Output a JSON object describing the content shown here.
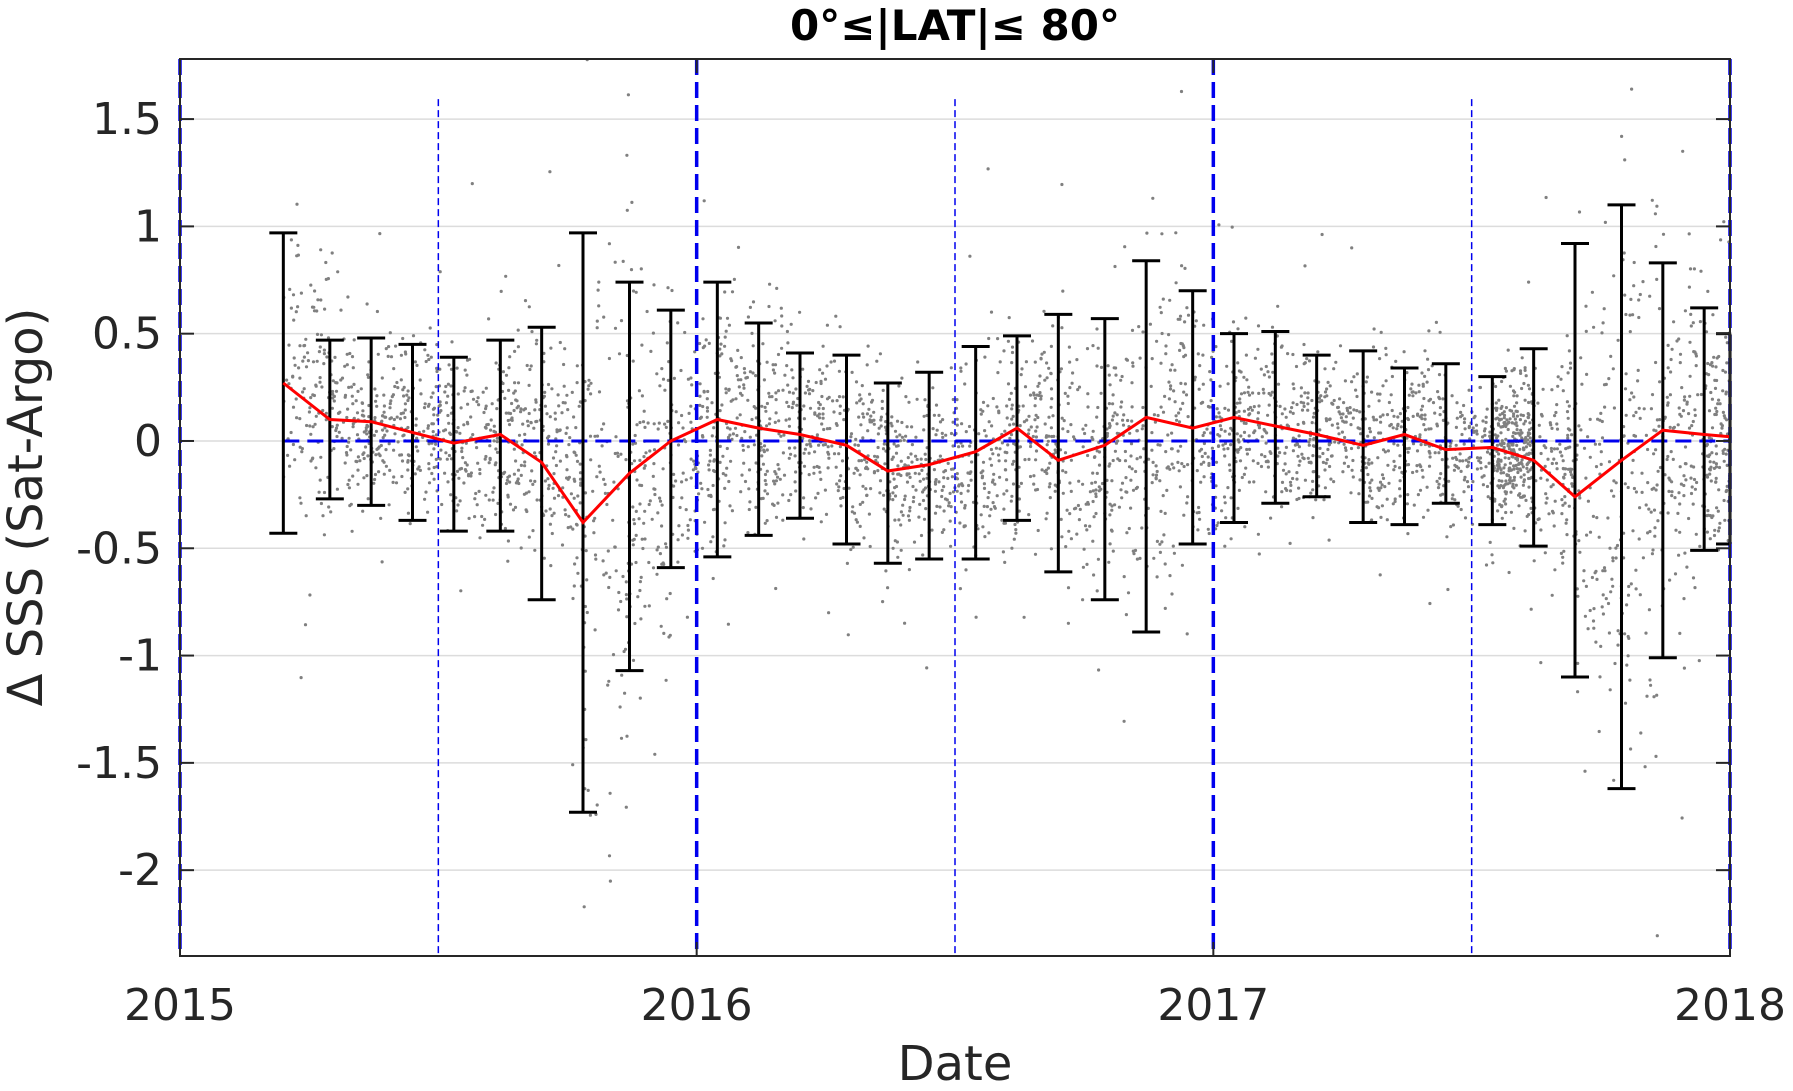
{
  "chart_data": {
    "type": "scatter",
    "title": "0°≤|LAT|≤ 80°",
    "xlabel": "Date",
    "ylabel": "Δ SSS (Sat-Argo)",
    "xlim": [
      2015.0,
      2018.0
    ],
    "ylim": [
      -2.4,
      1.78
    ],
    "x_ticks": [
      2015,
      2016,
      2017,
      2018
    ],
    "x_tick_labels": [
      "2015",
      "2016",
      "2017",
      "2018"
    ],
    "y_ticks": [
      -2,
      -1.5,
      -1,
      -0.5,
      0,
      0.5,
      1,
      1.5
    ],
    "y_tick_labels": [
      "-2",
      "-1.5",
      "-1",
      "-0.5",
      "0",
      "0.5",
      "1",
      "1.5"
    ],
    "grid": "horizontal",
    "legend": "none",
    "colors": {
      "scatter": "#808080",
      "mean_line": "#ff0000",
      "error_bars": "#000000",
      "reference_lines": "#0000ee",
      "grid": "#dcdcdc"
    },
    "year_lines": [
      2015.0,
      2016.0,
      2017.0,
      2018.0
    ],
    "midyear_lines": [
      2015.5,
      2016.5,
      2017.5
    ],
    "zero_line": 0,
    "series": [
      {
        "kind": "error_bars_with_mean",
        "x": [
          2015.2,
          2015.29,
          2015.37,
          2015.45,
          2015.53,
          2015.62,
          2015.7,
          2015.78,
          2015.87,
          2015.95,
          2016.04,
          2016.12,
          2016.2,
          2016.29,
          2016.37,
          2016.45,
          2016.54,
          2016.62,
          2016.7,
          2016.79,
          2016.87,
          2016.96,
          2017.04,
          2017.12,
          2017.2,
          2017.29,
          2017.37,
          2017.45,
          2017.54,
          2017.62,
          2017.7,
          2017.79,
          2017.87,
          2017.95,
          2018.0
        ],
        "mean": [
          0.27,
          0.1,
          0.09,
          0.04,
          -0.01,
          0.03,
          -0.1,
          -0.38,
          -0.15,
          0.0,
          0.1,
          0.06,
          0.03,
          -0.02,
          -0.14,
          -0.11,
          -0.05,
          0.06,
          -0.09,
          -0.02,
          0.11,
          0.06,
          0.11,
          0.07,
          0.03,
          -0.02,
          0.03,
          -0.04,
          -0.03,
          -0.09,
          -0.26,
          -0.09,
          0.05,
          0.03,
          0.02
        ],
        "upper": [
          0.97,
          0.47,
          0.48,
          0.45,
          0.39,
          0.47,
          0.53,
          0.97,
          0.74,
          0.61,
          0.74,
          0.55,
          0.41,
          0.4,
          0.27,
          0.32,
          0.44,
          0.49,
          0.59,
          0.57,
          0.84,
          0.7,
          0.5,
          0.51,
          0.4,
          0.42,
          0.34,
          0.36,
          0.3,
          0.43,
          0.92,
          1.1,
          0.83,
          0.62,
          0.5
        ],
        "lower": [
          -0.43,
          -0.27,
          -0.3,
          -0.37,
          -0.42,
          -0.42,
          -0.74,
          -1.73,
          -1.07,
          -0.59,
          -0.54,
          -0.44,
          -0.36,
          -0.48,
          -0.57,
          -0.55,
          -0.55,
          -0.37,
          -0.61,
          -0.74,
          -0.89,
          -0.48,
          -0.38,
          -0.29,
          -0.26,
          -0.38,
          -0.39,
          -0.29,
          -0.39,
          -0.49,
          -1.1,
          -1.62,
          -1.01,
          -0.51,
          -0.48
        ]
      }
    ]
  }
}
